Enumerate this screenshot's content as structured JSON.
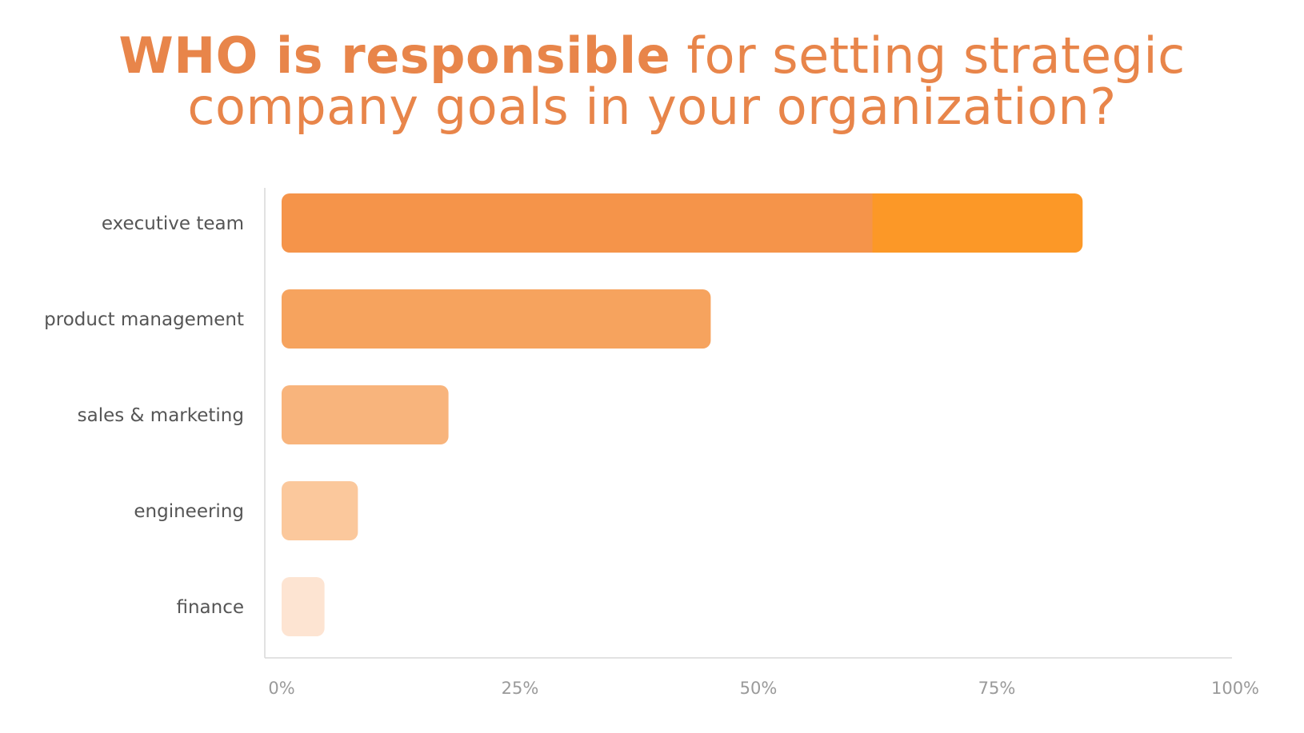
{
  "title": {
    "bold_part": "WHO is responsible",
    "line1_rest": " for setting strategic",
    "line2": "company goals in your organization?"
  },
  "chart_data": {
    "type": "bar",
    "orientation": "horizontal",
    "categories": [
      "executive team",
      "product management",
      "sales & marketing",
      "engineering",
      "finance"
    ],
    "values": [
      84,
      45,
      17.5,
      8,
      4.5
    ],
    "xlim": [
      0,
      100
    ],
    "xticks": [
      "0%",
      "25%",
      "50%",
      "75%",
      "100%"
    ],
    "grid": false,
    "legend": "none",
    "colors": [
      "#f5944a",
      "#f6a35e",
      "#f8b47c",
      "#fbc89c",
      "#fde4d2"
    ],
    "highlight_color": "#fc9827"
  }
}
